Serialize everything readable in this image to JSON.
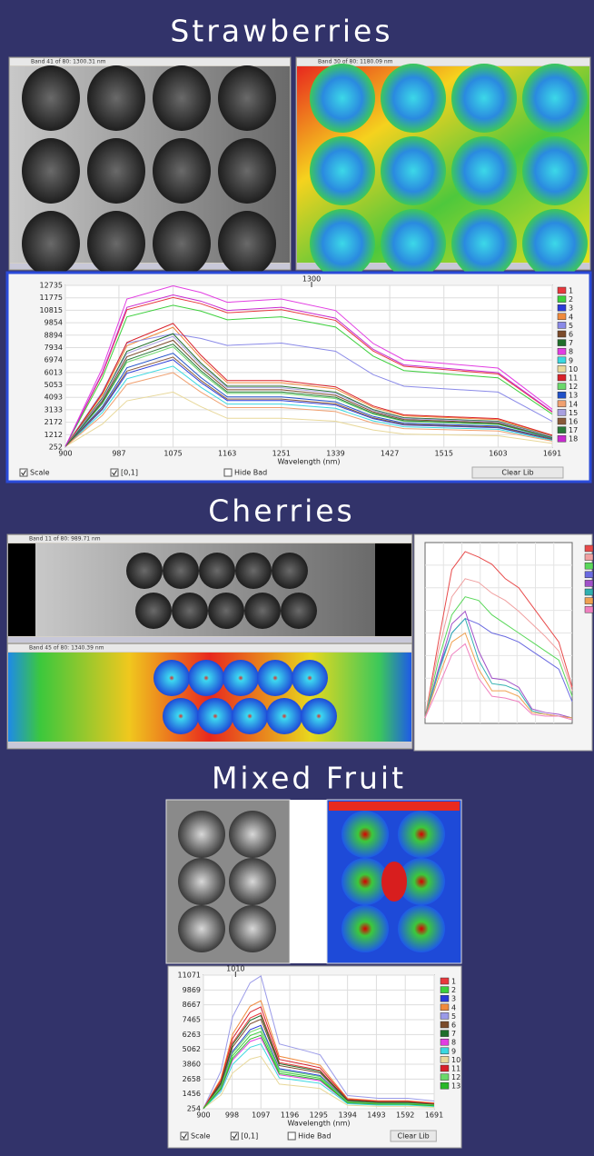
{
  "sections": [
    {
      "title": "Strawberries",
      "windows": [
        "Band 41 of 80: 1300.31 nm",
        "Band 30 of 80: 1180.09 nm"
      ]
    },
    {
      "title": "Cherries",
      "windows": [
        "Band 11 of 80: 989.71 nm",
        "Band 45 of 80: 1340.39 nm"
      ]
    },
    {
      "title": "Mixed Fruit"
    }
  ],
  "chart_data": [
    {
      "type": "line",
      "x_label": "Wavelength (nm)",
      "marker": 1300,
      "grid": true,
      "x": [
        900,
        960,
        1000,
        1075,
        1120,
        1163,
        1251,
        1339,
        1400,
        1450,
        1603,
        1691
      ],
      "xlim": [
        900,
        1691
      ],
      "xticks": [
        900,
        987,
        1075,
        1163,
        1251,
        1339,
        1427,
        1515,
        1603,
        1691
      ],
      "ylim": [
        252,
        12735
      ],
      "yticks": [
        252,
        1212,
        2172,
        3133,
        4093,
        5053,
        6013,
        6974,
        7934,
        8894,
        9854,
        10815,
        11775,
        12735
      ],
      "controls": {
        "scale": "Scale",
        "range": "[0,1]",
        "hide_bad": "Hide Bad",
        "clear": "Clear Lib"
      },
      "series": [
        {
          "name": "1",
          "color": "#e8383d",
          "values": [
            300,
            5900,
            10856,
            11800,
            11328,
            10620,
            10856,
            10030,
            7670,
            6490,
            5900,
            2950
          ]
        },
        {
          "name": "2",
          "color": "#3ccf3c",
          "values": [
            300,
            5600,
            10304,
            11200,
            10752,
            10080,
            10304,
            9520,
            7280,
            6160,
            5600,
            2800
          ]
        },
        {
          "name": "3",
          "color": "#2a3ad8",
          "values": [
            300,
            3150,
            5950,
            7000,
            5250,
            3850,
            3850,
            3500,
            2450,
            1960,
            1750,
            840
          ]
        },
        {
          "name": "4",
          "color": "#f08a3c",
          "values": [
            300,
            4275,
            8075,
            9500,
            7125,
            5225,
            5225,
            4750,
            3325,
            2660,
            2375,
            1140
          ]
        },
        {
          "name": "5",
          "color": "#8a8ae8",
          "values": [
            300,
            4500,
            8280,
            9000,
            8640,
            8100,
            8280,
            7650,
            5850,
            4950,
            4500,
            2250
          ]
        },
        {
          "name": "6",
          "color": "#7a4a2a",
          "values": [
            300,
            3825,
            7225,
            8500,
            6375,
            4675,
            4675,
            4250,
            2975,
            2380,
            2125,
            1020
          ]
        },
        {
          "name": "7",
          "color": "#1f6e2a",
          "values": [
            300,
            4050,
            7650,
            9000,
            6750,
            4950,
            4950,
            4500,
            3150,
            2520,
            2250,
            1080
          ]
        },
        {
          "name": "8",
          "color": "#e23ee2",
          "values": [
            300,
            6350,
            11684,
            12700,
            12192,
            11430,
            11684,
            10795,
            8255,
            6985,
            6350,
            3175
          ]
        },
        {
          "name": "9",
          "color": "#3ad8e0",
          "values": [
            300,
            2925,
            5525,
            6500,
            4875,
            3575,
            3575,
            3250,
            2275,
            1820,
            1625,
            780
          ]
        },
        {
          "name": "10",
          "color": "#e8d89a",
          "values": [
            300,
            2025,
            3825,
            4500,
            3375,
            2475,
            2475,
            2250,
            1575,
            1260,
            1125,
            540
          ]
        },
        {
          "name": "11",
          "color": "#d8202a",
          "values": [
            300,
            4410,
            8330,
            9800,
            7350,
            5390,
            5390,
            4900,
            3430,
            2744,
            2450,
            1176
          ]
        },
        {
          "name": "12",
          "color": "#6ad86a",
          "values": [
            300,
            3600,
            6800,
            8000,
            6000,
            4400,
            4400,
            4000,
            2800,
            2240,
            2000,
            960
          ]
        },
        {
          "name": "13",
          "color": "#2050c8",
          "values": [
            300,
            3375,
            6375,
            7500,
            5625,
            4125,
            4125,
            3750,
            2625,
            2100,
            1875,
            900
          ]
        },
        {
          "name": "14",
          "color": "#f0a070",
          "values": [
            300,
            2700,
            5100,
            6000,
            4500,
            3300,
            3300,
            3000,
            2100,
            1680,
            1500,
            720
          ]
        },
        {
          "name": "15",
          "color": "#a8a0e0",
          "values": [
            300,
            3960,
            7480,
            8800,
            6600,
            4840,
            4840,
            4400,
            3080,
            2464,
            2200,
            1056
          ]
        },
        {
          "name": "16",
          "color": "#8a5a3a",
          "values": [
            300,
            3240,
            6120,
            7200,
            5400,
            3960,
            3960,
            3600,
            2520,
            2016,
            1800,
            864
          ]
        },
        {
          "name": "17",
          "color": "#2a7a3a",
          "values": [
            300,
            3690,
            6970,
            8200,
            6150,
            4510,
            4510,
            4100,
            2870,
            2296,
            2050,
            984
          ]
        },
        {
          "name": "18",
          "color": "#c82ad0",
          "values": [
            300,
            6000,
            11040,
            12000,
            11520,
            10800,
            11040,
            10200,
            7800,
            6600,
            6000,
            3000
          ]
        }
      ]
    },
    {
      "type": "line",
      "grid": true,
      "categories": [
        null,
        null,
        null,
        null,
        null,
        null,
        null,
        null,
        null,
        null,
        null,
        null
      ],
      "ylim": [
        0,
        100
      ],
      "series": [
        {
          "color": "#e84a4a",
          "values": [
            3,
            45,
            85,
            95,
            92,
            88,
            80,
            75,
            65,
            55,
            45,
            20
          ]
        },
        {
          "color": "#f0a0a0",
          "values": [
            3,
            40,
            70,
            80,
            78,
            72,
            68,
            62,
            55,
            48,
            40,
            18
          ]
        },
        {
          "color": "#5ad85a",
          "values": [
            3,
            35,
            60,
            70,
            68,
            60,
            55,
            50,
            45,
            40,
            35,
            15
          ]
        },
        {
          "color": "#6a6ae0",
          "values": [
            3,
            30,
            50,
            58,
            55,
            50,
            48,
            45,
            40,
            35,
            30,
            12
          ]
        },
        {
          "color": "#a050c8",
          "values": [
            3,
            30,
            55,
            62,
            40,
            25,
            24,
            20,
            8,
            6,
            5,
            3
          ]
        },
        {
          "color": "#30b0b0",
          "values": [
            3,
            28,
            50,
            58,
            35,
            22,
            21,
            18,
            7,
            5,
            4,
            3
          ]
        },
        {
          "color": "#f0a050",
          "values": [
            3,
            25,
            45,
            50,
            30,
            18,
            18,
            15,
            6,
            5,
            4,
            3
          ]
        },
        {
          "color": "#f080c0",
          "values": [
            3,
            20,
            38,
            44,
            25,
            15,
            14,
            12,
            5,
            4,
            4,
            2
          ]
        }
      ]
    },
    {
      "type": "line",
      "x_label": "Wavelength (nm)",
      "marker": 1010,
      "grid": true,
      "x": [
        900,
        960,
        1000,
        1060,
        1097,
        1160,
        1250,
        1300,
        1394,
        1500,
        1600,
        1691
      ],
      "xlim": [
        900,
        1691
      ],
      "xticks": [
        900,
        998,
        1097,
        1196,
        1295,
        1394,
        1493,
        1592,
        1691
      ],
      "ylim": [
        254,
        11071
      ],
      "yticks": [
        254,
        1456,
        2658,
        3860,
        5062,
        6263,
        7465,
        8667,
        9869,
        11071
      ],
      "controls": {
        "scale": "Scale",
        "range": "[0,1]",
        "hide_bad": "Hide Bad",
        "clear": "Clear Lib"
      },
      "series": [
        {
          "name": "1",
          "color": "#e8383d",
          "values": [
            280,
            2400,
            5600,
            7600,
            8000,
            4000,
            3600,
            3360,
            960,
            800,
            800,
            640
          ]
        },
        {
          "name": "2",
          "color": "#3ccf3c",
          "values": [
            280,
            1950,
            4550,
            6175,
            6500,
            3250,
            2925,
            2730,
            780,
            650,
            650,
            520
          ]
        },
        {
          "name": "3",
          "color": "#2a3ad8",
          "values": [
            280,
            2100,
            4900,
            6650,
            7000,
            3500,
            3150,
            2940,
            840,
            700,
            700,
            560
          ]
        },
        {
          "name": "4",
          "color": "#f08a3c",
          "values": [
            280,
            2700,
            6300,
            8550,
            9000,
            4500,
            4050,
            3780,
            1080,
            900,
            900,
            720
          ]
        },
        {
          "name": "5",
          "color": "#9a9ae8",
          "values": [
            280,
            3300,
            7700,
            10450,
            11000,
            5500,
            4950,
            4620,
            1320,
            1100,
            1100,
            880
          ]
        },
        {
          "name": "6",
          "color": "#7a4a2a",
          "values": [
            280,
            2250,
            5250,
            7125,
            7500,
            3750,
            3375,
            3150,
            900,
            750,
            750,
            600
          ]
        },
        {
          "name": "7",
          "color": "#1f6e2a",
          "values": [
            280,
            2340,
            5460,
            7410,
            7800,
            3900,
            3510,
            3276,
            936,
            780,
            780,
            624
          ]
        },
        {
          "name": "8",
          "color": "#e23ee2",
          "values": [
            280,
            1800,
            4200,
            5700,
            6000,
            3000,
            2700,
            2520,
            720,
            600,
            600,
            480
          ]
        },
        {
          "name": "9",
          "color": "#3ad8e0",
          "values": [
            280,
            1650,
            3850,
            5225,
            5500,
            2750,
            2475,
            2310,
            660,
            550,
            550,
            440
          ]
        },
        {
          "name": "10",
          "color": "#e8d89a",
          "values": [
            280,
            1350,
            3150,
            4275,
            4500,
            2250,
            2025,
            1890,
            540,
            450,
            450,
            360
          ]
        },
        {
          "name": "11",
          "color": "#d8202a",
          "values": [
            280,
            2550,
            5950,
            8075,
            8500,
            4250,
            3825,
            3570,
            1020,
            850,
            850,
            680
          ]
        },
        {
          "name": "12",
          "color": "#6ad86a",
          "values": [
            280,
            2040,
            4760,
            6460,
            6800,
            3400,
            3060,
            2856,
            816,
            680,
            680,
            544
          ]
        },
        {
          "name": "13",
          "color": "#28b828",
          "values": [
            280,
            1860,
            4340,
            5890,
            6200,
            3100,
            2790,
            2604,
            744,
            620,
            620,
            496
          ]
        }
      ]
    }
  ]
}
